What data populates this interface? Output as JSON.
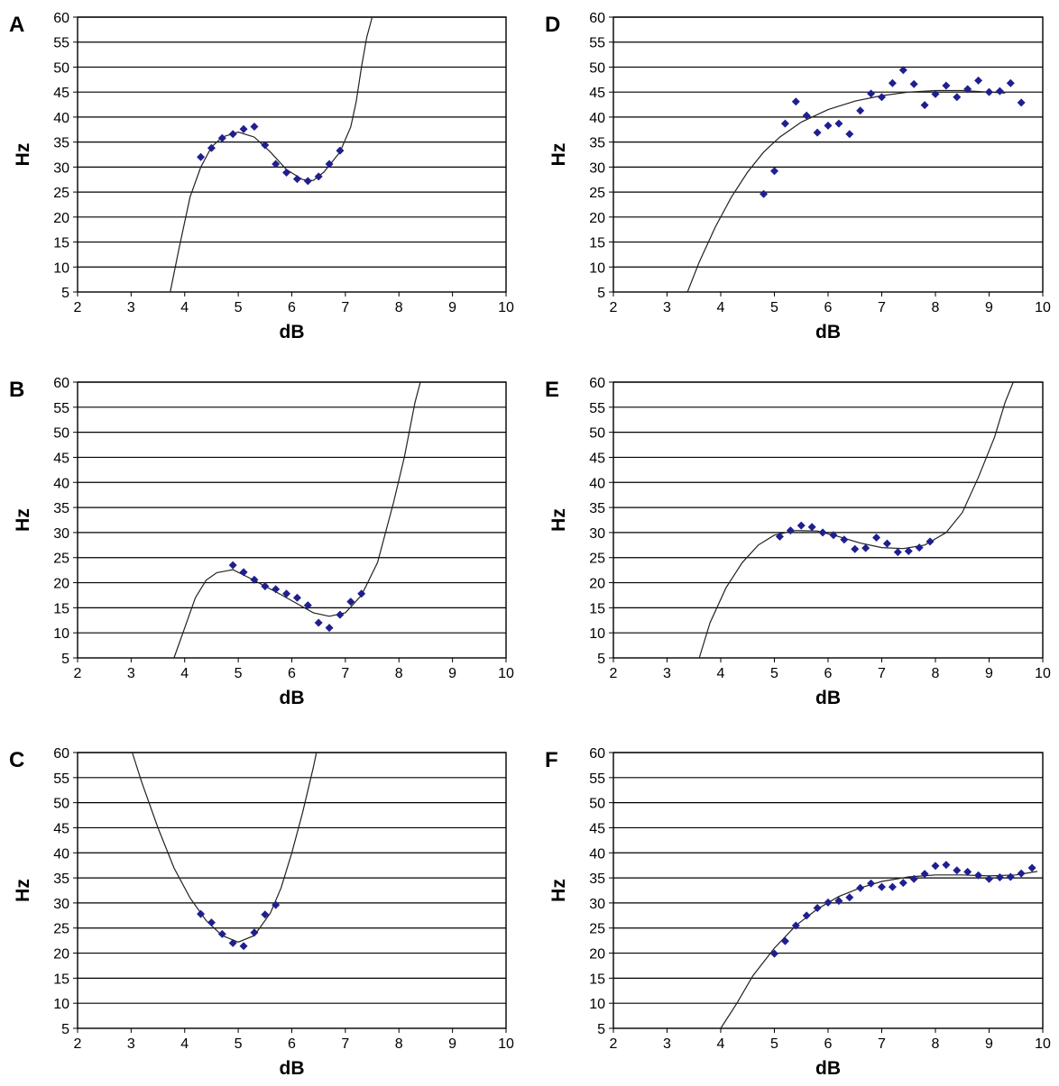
{
  "chart_data": [
    {
      "panel": "A",
      "type": "scatter",
      "xlabel": "dB",
      "ylabel": "Hz",
      "xlim": [
        2,
        10
      ],
      "ylim": [
        5,
        60
      ],
      "xticks": [
        2,
        3,
        4,
        5,
        6,
        7,
        8,
        9,
        10
      ],
      "yticks": [
        5,
        10,
        15,
        20,
        25,
        30,
        35,
        40,
        45,
        50,
        55,
        60
      ],
      "grid": "horizontal",
      "legend": "none",
      "marker_color": "#1f1f8f",
      "points": [
        [
          4.3,
          32
        ],
        [
          4.5,
          33.8
        ],
        [
          4.7,
          35.8
        ],
        [
          4.9,
          36.6
        ],
        [
          5.1,
          37.6
        ],
        [
          5.3,
          38.1
        ],
        [
          5.5,
          34.4
        ],
        [
          5.7,
          30.6
        ],
        [
          5.9,
          28.9
        ],
        [
          6.1,
          27.6
        ],
        [
          6.3,
          27.2
        ],
        [
          6.5,
          28.1
        ],
        [
          6.7,
          30.6
        ],
        [
          6.9,
          33.3
        ]
      ],
      "trend": [
        [
          3.73,
          5
        ],
        [
          3.9,
          14
        ],
        [
          4.1,
          24
        ],
        [
          4.3,
          30
        ],
        [
          4.5,
          34
        ],
        [
          4.7,
          36
        ],
        [
          5.0,
          37
        ],
        [
          5.3,
          36
        ],
        [
          5.6,
          33
        ],
        [
          5.9,
          29.5
        ],
        [
          6.2,
          27.5
        ],
        [
          6.4,
          27.3
        ],
        [
          6.6,
          29
        ],
        [
          6.9,
          33
        ],
        [
          7.1,
          38
        ],
        [
          7.2,
          43
        ],
        [
          7.3,
          50
        ],
        [
          7.4,
          56
        ],
        [
          7.5,
          60
        ]
      ]
    },
    {
      "panel": "B",
      "type": "scatter",
      "xlabel": "dB",
      "ylabel": "Hz",
      "xlim": [
        2,
        10
      ],
      "ylim": [
        5,
        60
      ],
      "xticks": [
        2,
        3,
        4,
        5,
        6,
        7,
        8,
        9,
        10
      ],
      "yticks": [
        5,
        10,
        15,
        20,
        25,
        30,
        35,
        40,
        45,
        50,
        55,
        60
      ],
      "grid": "horizontal",
      "legend": "none",
      "marker_color": "#1f1f8f",
      "points": [
        [
          4.9,
          23.5
        ],
        [
          5.1,
          22.1
        ],
        [
          5.3,
          20.6
        ],
        [
          5.5,
          19.3
        ],
        [
          5.7,
          18.7
        ],
        [
          5.9,
          17.8
        ],
        [
          6.1,
          17
        ],
        [
          6.3,
          15.5
        ],
        [
          6.5,
          12
        ],
        [
          6.7,
          11
        ],
        [
          6.9,
          13.6
        ],
        [
          7.1,
          16.2
        ],
        [
          7.3,
          17.8
        ]
      ],
      "trend": [
        [
          3.8,
          5
        ],
        [
          4.0,
          11
        ],
        [
          4.2,
          17
        ],
        [
          4.4,
          20.5
        ],
        [
          4.6,
          22
        ],
        [
          4.9,
          22.6
        ],
        [
          5.2,
          21
        ],
        [
          5.5,
          19.3
        ],
        [
          5.8,
          17.6
        ],
        [
          6.1,
          15.8
        ],
        [
          6.4,
          14
        ],
        [
          6.7,
          13.3
        ],
        [
          7.0,
          14
        ],
        [
          7.3,
          17.5
        ],
        [
          7.6,
          24
        ],
        [
          7.9,
          36
        ],
        [
          8.1,
          45
        ],
        [
          8.3,
          56
        ],
        [
          8.4,
          60
        ]
      ]
    },
    {
      "panel": "C",
      "type": "scatter",
      "xlabel": "dB",
      "ylabel": "Hz",
      "xlim": [
        2,
        10
      ],
      "ylim": [
        5,
        60
      ],
      "xticks": [
        2,
        3,
        4,
        5,
        6,
        7,
        8,
        9,
        10
      ],
      "yticks": [
        5,
        10,
        15,
        20,
        25,
        30,
        35,
        40,
        45,
        50,
        55,
        60
      ],
      "grid": "horizontal",
      "legend": "none",
      "marker_color": "#1f1f8f",
      "points": [
        [
          4.3,
          27.8
        ],
        [
          4.5,
          26.1
        ],
        [
          4.7,
          23.8
        ],
        [
          4.9,
          22
        ],
        [
          5.1,
          21.4
        ],
        [
          5.3,
          24.1
        ],
        [
          5.5,
          27.7
        ],
        [
          5.7,
          29.6
        ]
      ],
      "trend": [
        [
          3.02,
          60
        ],
        [
          3.2,
          54
        ],
        [
          3.5,
          45
        ],
        [
          3.8,
          37
        ],
        [
          4.1,
          31
        ],
        [
          4.4,
          26.5
        ],
        [
          4.7,
          23.5
        ],
        [
          5.0,
          22.2
        ],
        [
          5.3,
          23.5
        ],
        [
          5.6,
          28
        ],
        [
          5.8,
          33
        ],
        [
          6.0,
          40
        ],
        [
          6.2,
          48
        ],
        [
          6.4,
          57
        ],
        [
          6.46,
          60
        ]
      ]
    },
    {
      "panel": "D",
      "type": "scatter",
      "xlabel": "dB",
      "ylabel": "Hz",
      "xlim": [
        2,
        10
      ],
      "ylim": [
        5,
        60
      ],
      "xticks": [
        2,
        3,
        4,
        5,
        6,
        7,
        8,
        9,
        10
      ],
      "yticks": [
        5,
        10,
        15,
        20,
        25,
        30,
        35,
        40,
        45,
        50,
        55,
        60
      ],
      "grid": "horizontal",
      "legend": "none",
      "marker_color": "#1f1f8f",
      "points": [
        [
          4.8,
          24.6
        ],
        [
          5.0,
          29.2
        ],
        [
          5.2,
          38.7
        ],
        [
          5.4,
          43.1
        ],
        [
          5.6,
          40.3
        ],
        [
          5.8,
          36.9
        ],
        [
          6.0,
          38.3
        ],
        [
          6.2,
          38.7
        ],
        [
          6.4,
          36.6
        ],
        [
          6.6,
          41.3
        ],
        [
          6.8,
          44.7
        ],
        [
          7.0,
          44
        ],
        [
          7.2,
          46.8
        ],
        [
          7.4,
          49.4
        ],
        [
          7.6,
          46.6
        ],
        [
          7.8,
          42.4
        ],
        [
          8.0,
          44.6
        ],
        [
          8.2,
          46.3
        ],
        [
          8.4,
          44
        ],
        [
          8.6,
          45.6
        ],
        [
          8.8,
          47.3
        ],
        [
          9.0,
          45
        ],
        [
          9.2,
          45.2
        ],
        [
          9.4,
          46.8
        ],
        [
          9.6,
          42.9
        ]
      ],
      "trend": [
        [
          3.38,
          5
        ],
        [
          3.6,
          11
        ],
        [
          3.9,
          18
        ],
        [
          4.2,
          24
        ],
        [
          4.5,
          29
        ],
        [
          4.8,
          33
        ],
        [
          5.1,
          36
        ],
        [
          5.5,
          39
        ],
        [
          6.0,
          41.5
        ],
        [
          6.5,
          43.2
        ],
        [
          7.0,
          44.3
        ],
        [
          7.5,
          45
        ],
        [
          8.0,
          45.3
        ],
        [
          8.5,
          45.3
        ],
        [
          9.0,
          45
        ],
        [
          9.3,
          44.8
        ]
      ]
    },
    {
      "panel": "E",
      "type": "scatter",
      "xlabel": "dB",
      "ylabel": "Hz",
      "xlim": [
        2,
        10
      ],
      "ylim": [
        5,
        60
      ],
      "xticks": [
        2,
        3,
        4,
        5,
        6,
        7,
        8,
        9,
        10
      ],
      "yticks": [
        5,
        10,
        15,
        20,
        25,
        30,
        35,
        40,
        45,
        50,
        55,
        60
      ],
      "grid": "horizontal",
      "legend": "none",
      "marker_color": "#1f1f8f",
      "points": [
        [
          5.1,
          29.2
        ],
        [
          5.3,
          30.4
        ],
        [
          5.5,
          31.4
        ],
        [
          5.7,
          31.1
        ],
        [
          5.9,
          30
        ],
        [
          6.1,
          29.5
        ],
        [
          6.3,
          28.6
        ],
        [
          6.5,
          26.7
        ],
        [
          6.7,
          26.9
        ],
        [
          6.9,
          29
        ],
        [
          7.1,
          27.8
        ],
        [
          7.3,
          26.1
        ],
        [
          7.5,
          26.3
        ],
        [
          7.7,
          27
        ],
        [
          7.9,
          28.2
        ]
      ],
      "trend": [
        [
          3.6,
          5
        ],
        [
          3.8,
          12
        ],
        [
          4.1,
          19
        ],
        [
          4.4,
          24
        ],
        [
          4.7,
          27.5
        ],
        [
          5.0,
          29.5
        ],
        [
          5.4,
          30.4
        ],
        [
          5.8,
          30.3
        ],
        [
          6.2,
          29.2
        ],
        [
          6.6,
          27.9
        ],
        [
          7.0,
          27
        ],
        [
          7.4,
          26.8
        ],
        [
          7.8,
          27.5
        ],
        [
          8.2,
          30
        ],
        [
          8.5,
          34
        ],
        [
          8.8,
          41
        ],
        [
          9.1,
          49
        ],
        [
          9.3,
          56
        ],
        [
          9.45,
          60
        ]
      ]
    },
    {
      "panel": "F",
      "type": "scatter",
      "xlabel": "dB",
      "ylabel": "Hz",
      "xlim": [
        2,
        10
      ],
      "ylim": [
        5,
        60
      ],
      "xticks": [
        2,
        3,
        4,
        5,
        6,
        7,
        8,
        9,
        10
      ],
      "yticks": [
        5,
        10,
        15,
        20,
        25,
        30,
        35,
        40,
        45,
        50,
        55,
        60
      ],
      "grid": "horizontal",
      "legend": "none",
      "marker_color": "#1f1f8f",
      "points": [
        [
          5.0,
          19.9
        ],
        [
          5.2,
          22.4
        ],
        [
          5.4,
          25.5
        ],
        [
          5.6,
          27.5
        ],
        [
          5.8,
          29
        ],
        [
          6.0,
          30.1
        ],
        [
          6.2,
          30.4
        ],
        [
          6.4,
          31.1
        ],
        [
          6.6,
          33
        ],
        [
          6.8,
          33.9
        ],
        [
          7.0,
          33.2
        ],
        [
          7.2,
          33.2
        ],
        [
          7.4,
          34
        ],
        [
          7.6,
          34.8
        ],
        [
          7.8,
          35.8
        ],
        [
          8.0,
          37.4
        ],
        [
          8.2,
          37.6
        ],
        [
          8.4,
          36.5
        ],
        [
          8.6,
          36.2
        ],
        [
          8.8,
          35.5
        ],
        [
          9.0,
          34.8
        ],
        [
          9.2,
          35.1
        ],
        [
          9.4,
          35.2
        ],
        [
          9.6,
          35.9
        ],
        [
          9.8,
          37
        ]
      ],
      "trend": [
        [
          4.0,
          5
        ],
        [
          4.3,
          10
        ],
        [
          4.6,
          15.5
        ],
        [
          5.0,
          21
        ],
        [
          5.4,
          25.5
        ],
        [
          5.8,
          28.8
        ],
        [
          6.2,
          31.3
        ],
        [
          6.6,
          33
        ],
        [
          7.0,
          34.3
        ],
        [
          7.5,
          35.2
        ],
        [
          8.0,
          35.6
        ],
        [
          8.5,
          35.6
        ],
        [
          9.0,
          35.4
        ],
        [
          9.5,
          35.6
        ],
        [
          9.9,
          36.3
        ]
      ]
    }
  ]
}
